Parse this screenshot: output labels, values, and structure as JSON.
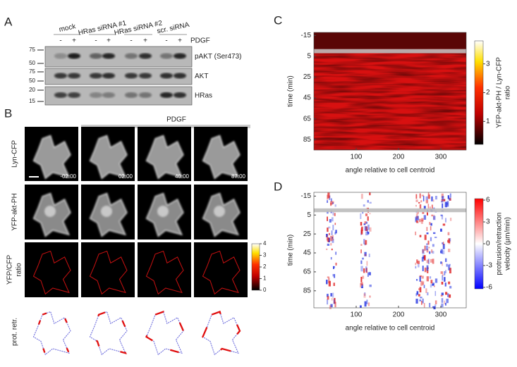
{
  "panel_labels": [
    "A",
    "B",
    "C",
    "D"
  ],
  "blot": {
    "conditions": [
      "mock",
      "HRas siRNA #1",
      "HRas siRNA #2",
      "scr. siRNA"
    ],
    "treatment": "PDGF",
    "signs": [
      "-",
      "+"
    ],
    "rows": [
      {
        "label": "pAKT (Ser473)",
        "markers": [
          75,
          50
        ]
      },
      {
        "label": "AKT",
        "markers": [
          75,
          50
        ]
      },
      {
        "label": "HRas",
        "markers": [
          20,
          15
        ]
      }
    ]
  },
  "imaging": {
    "treatment": "PDGF",
    "rows": [
      [
        "Lyn-CFP"
      ],
      [
        "YFP-akt-PH"
      ],
      [
        "YFP/CFP",
        "ratio"
      ],
      [
        "prot. retr."
      ]
    ],
    "times": [
      "-02:00",
      "02:00",
      "40:00",
      "87:00"
    ],
    "colorbar_ticks": [
      0,
      1,
      2,
      3,
      4
    ]
  },
  "heatmaps": [
    {
      "ylabel": "time (min)",
      "xlabel": "angle relative to cell centroid",
      "xlim": [
        0,
        360
      ],
      "xticks": [
        100,
        200,
        300
      ],
      "ylim": [
        -18,
        95
      ],
      "yticks": [
        -15,
        5,
        25,
        45,
        65,
        85
      ],
      "colorbar_label": [
        "YFP-akt-PH / Lyn-CFP",
        "ratio"
      ],
      "clim": [
        0.2,
        3.8
      ],
      "cticks": [
        1,
        2,
        3
      ]
    },
    {
      "ylabel": "time (min)",
      "xlabel": "angle relative to cell centroid",
      "xlim": [
        0,
        360
      ],
      "xticks": [
        100,
        200,
        300
      ],
      "ylim": [
        -19,
        103
      ],
      "yticks": [
        -15,
        5,
        25,
        45,
        65,
        85
      ],
      "colorbar_label": [
        "protrusion/retraction",
        "velocity (µm/min)"
      ],
      "clim": [
        -6.2,
        6.2
      ],
      "cticks": [
        -6,
        -3,
        0,
        3,
        6
      ]
    }
  ]
}
